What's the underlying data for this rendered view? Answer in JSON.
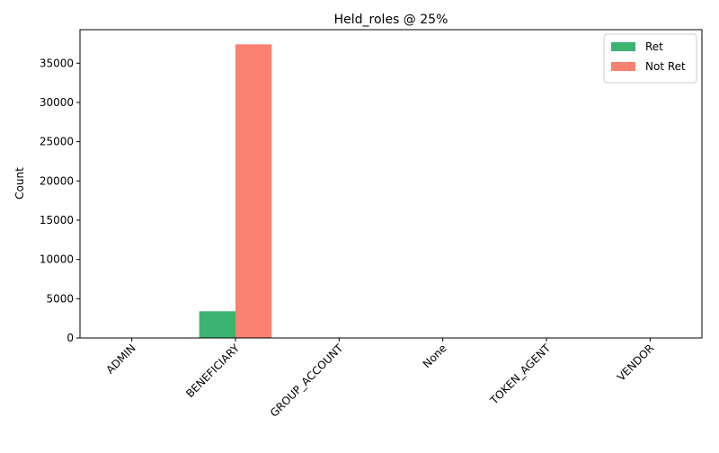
{
  "chart_data": {
    "type": "bar",
    "title": "Held_roles @ 25%",
    "xlabel": "",
    "ylabel": "Count",
    "categories": [
      "ADMIN",
      "BENEFICIARY",
      "GROUP_ACCOUNT",
      "None",
      "TOKEN_AGENT",
      "VENDOR"
    ],
    "series": [
      {
        "name": "Ret",
        "color": "#3cb371",
        "values": [
          0,
          3400,
          0,
          0,
          0,
          0
        ]
      },
      {
        "name": "Not Ret",
        "color": "#fa8072",
        "values": [
          0,
          37400,
          0,
          0,
          0,
          0
        ]
      }
    ],
    "ylim": [
      0,
      39270
    ],
    "yticks": [
      0,
      5000,
      10000,
      15000,
      20000,
      25000,
      30000,
      35000
    ],
    "xtick_rotation": 45,
    "legend_position": "top-right",
    "grid": false
  }
}
